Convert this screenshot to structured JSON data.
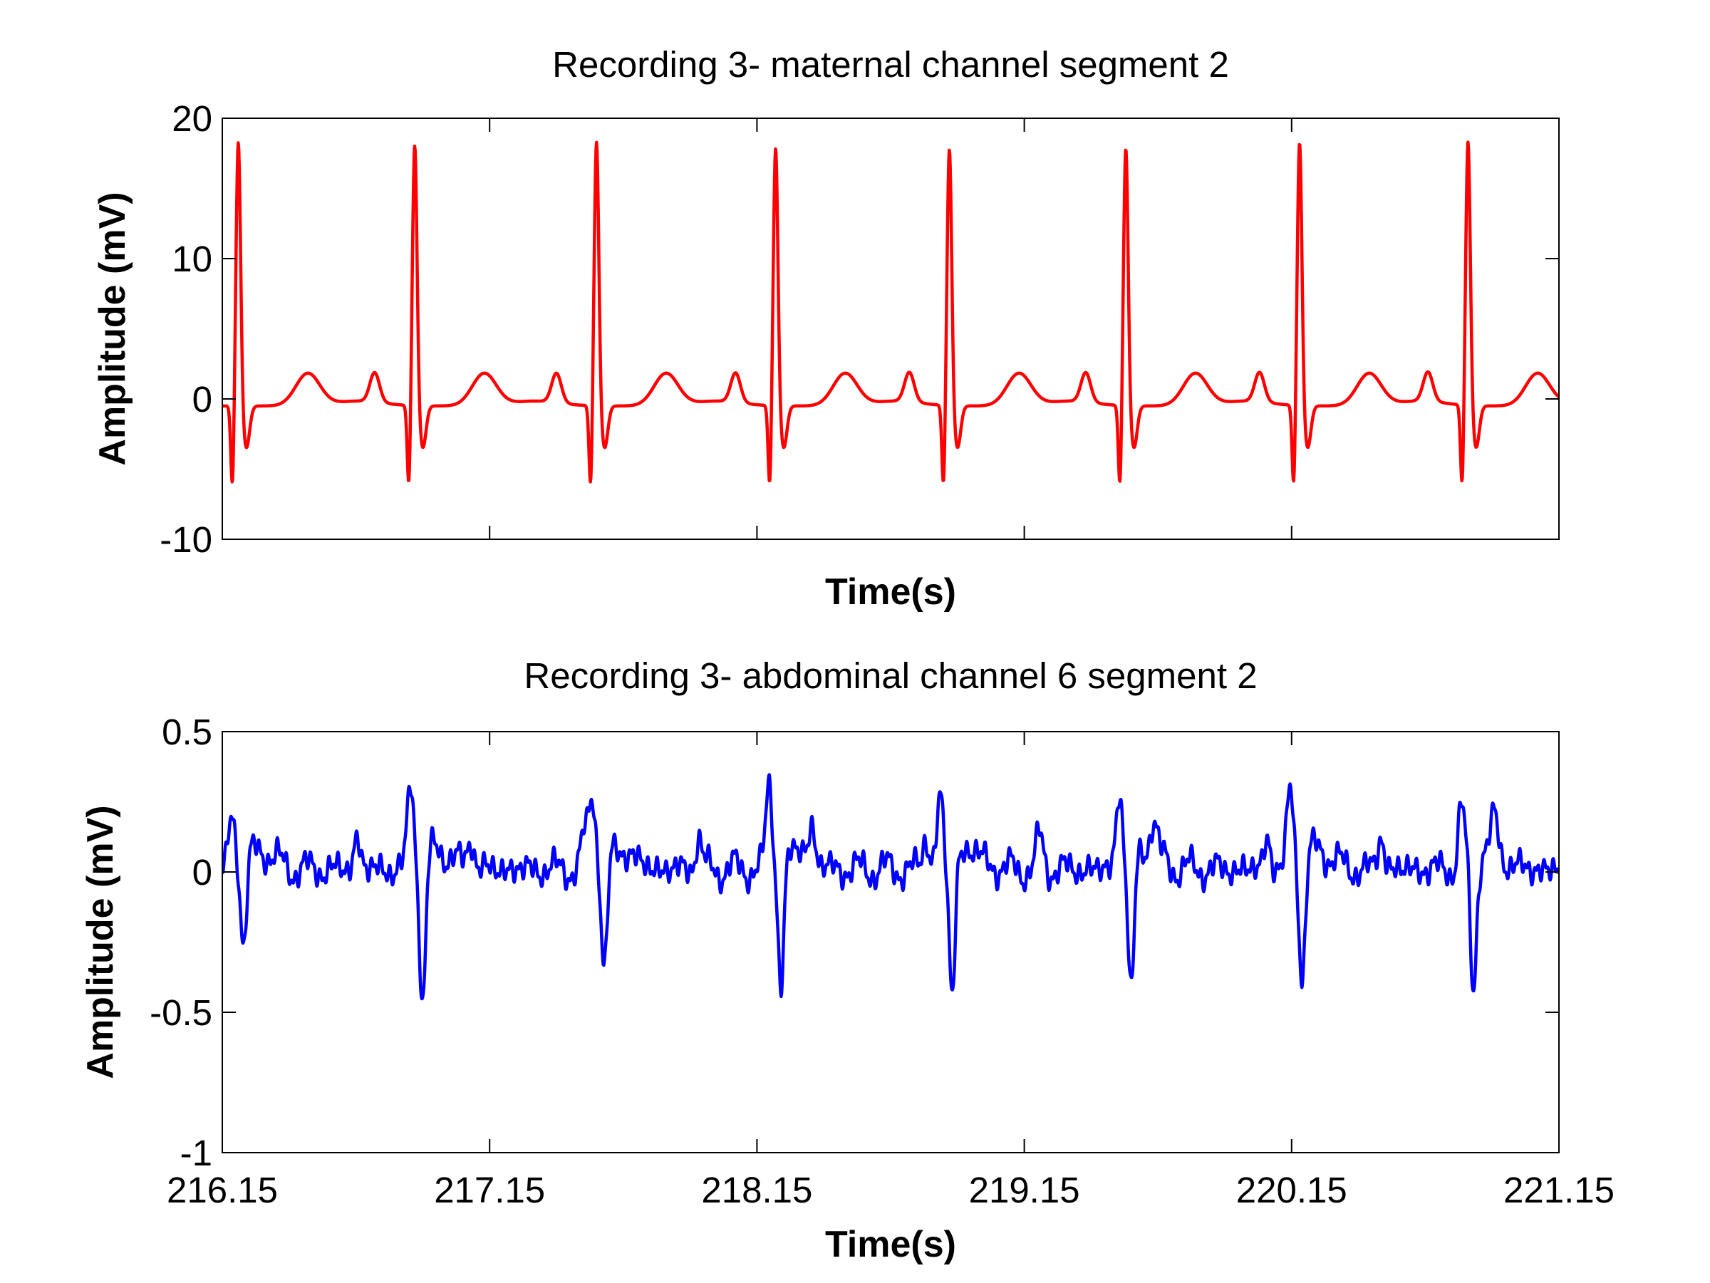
{
  "chart_data": [
    {
      "type": "line",
      "title": "Recording 3- maternal channel segment 2",
      "xlabel": "Time(s)",
      "ylabel": "Amplitude (mV)",
      "xlim": [
        216.15,
        221.15
      ],
      "ylim": [
        -10,
        20
      ],
      "yticks": [
        -10,
        0,
        10,
        20
      ],
      "ytick_labels": [
        "-10",
        "0",
        "10",
        "20"
      ],
      "xticks": [
        216.15,
        217.15,
        218.15,
        219.15,
        220.15,
        221.15
      ],
      "xtick_labels": [],
      "grid": false,
      "series": [
        {
          "color": "#ff0000",
          "r_peak_times": [
            216.21,
            216.87,
            217.55,
            218.22,
            218.87,
            219.53,
            220.18,
            220.81
          ],
          "r_peak_values": [
            18.3,
            18.1,
            18.3,
            17.9,
            17.8,
            17.9,
            18.3,
            18.3
          ],
          "s_wave_min": -6.5,
          "t_wave_peak": 1.7,
          "p_wave_peak": 1.6,
          "baseline": -0.5,
          "x": [
            216.15,
            216.17,
            216.19,
            216.21,
            216.23,
            216.25,
            216.35,
            216.45,
            216.55,
            216.75,
            216.82,
            216.87,
            216.91,
            217.02,
            217.11,
            217.21,
            217.41,
            217.48,
            217.55,
            217.59,
            217.69,
            217.79,
            217.89,
            218.09,
            218.15,
            218.22,
            218.26,
            218.36,
            218.45,
            218.55,
            218.75,
            218.82,
            218.87,
            218.91,
            219.01,
            219.11,
            219.21,
            219.41,
            219.48,
            219.53,
            219.57,
            219.67,
            219.76,
            219.86,
            220.06,
            220.13,
            220.18,
            220.22,
            220.31,
            220.41,
            220.51,
            220.71,
            220.76,
            220.81,
            220.85,
            220.95,
            221.05,
            221.15
          ],
          "y": [
            -2.0,
            -6.5,
            1.0,
            18.3,
            -3.3,
            -2.5,
            -1.0,
            1.7,
            -0.8,
            0.0,
            1.6,
            18.1,
            -3.0,
            -2.0,
            1.7,
            -0.7,
            0.0,
            1.6,
            18.3,
            -2.8,
            -1.8,
            1.7,
            -0.8,
            0.0,
            1.6,
            17.9,
            -2.8,
            -2.0,
            1.7,
            -0.8,
            0.0,
            1.6,
            17.8,
            -2.5,
            -1.8,
            1.7,
            -0.7,
            0.0,
            1.6,
            17.9,
            -2.5,
            -1.8,
            1.7,
            -0.8,
            0.0,
            1.6,
            18.3,
            -3.0,
            -2.0,
            1.7,
            -0.8,
            0.0,
            1.6,
            18.3,
            -3.0,
            -2.0,
            1.6,
            -0.6
          ]
        }
      ]
    },
    {
      "type": "line",
      "title": "Recording 3- abdominal channel 6 segment 2",
      "xlabel": "Time(s)",
      "ylabel": "Amplitude (mV)",
      "xlim": [
        216.15,
        221.15
      ],
      "ylim": [
        -1,
        0.5
      ],
      "yticks": [
        -1,
        -0.5,
        0,
        0.5
      ],
      "ytick_labels": [
        "-1",
        "-0.5",
        "0",
        "0.5"
      ],
      "xticks": [
        216.15,
        217.15,
        218.15,
        219.15,
        220.15,
        221.15
      ],
      "xtick_labels": [
        "216.15",
        "217.15",
        "218.15",
        "219.15",
        "220.15",
        "221.15"
      ],
      "grid": false,
      "series": [
        {
          "color": "#0000ff",
          "beat_times": [
            216.21,
            216.88,
            217.56,
            218.22,
            218.86,
            219.53,
            220.17,
            220.81
          ],
          "beat_peak_values": [
            0.19,
            0.3,
            0.26,
            0.29,
            0.25,
            0.27,
            0.28,
            0.21
          ],
          "beat_trough_values": [
            -0.42,
            -0.5,
            -0.39,
            -0.44,
            -0.48,
            -0.48,
            -0.41,
            -0.46
          ],
          "x": [
            216.15,
            216.17,
            216.19,
            216.21,
            216.23,
            216.25,
            216.35,
            216.45,
            216.55,
            216.65,
            216.75,
            216.84,
            216.86,
            216.88,
            216.9,
            216.92,
            217.05,
            217.2,
            217.35,
            217.5,
            217.54,
            217.56,
            217.58,
            217.6,
            217.7,
            217.85,
            218.0,
            218.15,
            218.18,
            218.2,
            218.22,
            218.24,
            218.26,
            218.4,
            218.55,
            218.7,
            218.82,
            218.84,
            218.86,
            218.88,
            218.9,
            219.05,
            219.2,
            219.35,
            219.49,
            219.51,
            219.53,
            219.55,
            219.57,
            219.7,
            219.85,
            220.0,
            220.13,
            220.15,
            220.17,
            220.19,
            220.21,
            220.35,
            220.5,
            220.65,
            220.77,
            220.79,
            220.81,
            220.83,
            220.85,
            221.0,
            221.15
          ],
          "y": [
            -0.02,
            0.19,
            -0.42,
            0.08,
            0.05,
            -0.02,
            0.1,
            0.0,
            0.05,
            -0.08,
            0.2,
            0.0,
            0.3,
            -0.5,
            0.12,
            0.05,
            0.0,
            0.1,
            -0.05,
            0.08,
            0.26,
            -0.39,
            0.1,
            0.03,
            0.0,
            -0.03,
            0.05,
            -0.02,
            0.29,
            -0.44,
            0.1,
            0.03,
            -0.02,
            0.05,
            0.0,
            0.03,
            0.25,
            -0.48,
            0.12,
            0.05,
            0.02,
            -0.05,
            0.1,
            0.0,
            0.27,
            -0.48,
            0.1,
            0.03,
            0.0,
            -0.05,
            0.03,
            -0.03,
            0.28,
            -0.41,
            0.25,
            0.05,
            0.02,
            0.0,
            -0.1,
            0.08,
            0.21,
            -0.46,
            0.05,
            0.02,
            0.1,
            -0.05,
            0.0
          ]
        }
      ]
    }
  ]
}
